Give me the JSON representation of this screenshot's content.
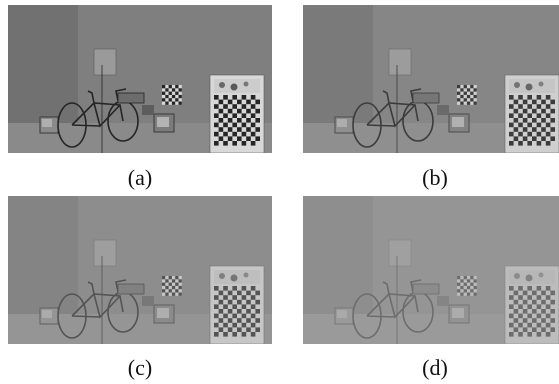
{
  "figure": {
    "panels": [
      {
        "caption": "(a)",
        "haze": 0.05
      },
      {
        "caption": "(b)",
        "haze": 0.22
      },
      {
        "caption": "(c)",
        "haze": 0.4
      },
      {
        "caption": "(d)",
        "haze": 0.58
      }
    ],
    "scene_colors": {
      "wall_left": "#6f6f6f",
      "wall_right": "#7e7e7e",
      "floor": "#8a8a8a",
      "dark": "#1f1f1f",
      "light": "#dcdcdc",
      "haze": "#a5a5a5"
    }
  }
}
